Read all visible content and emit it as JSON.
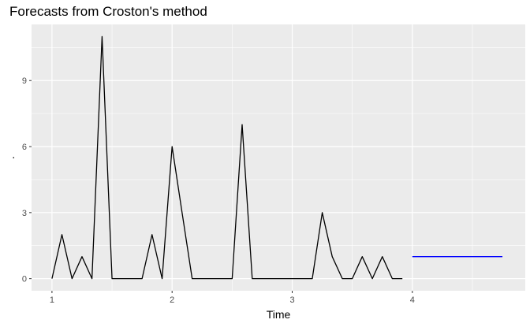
{
  "chart_data": {
    "type": "line",
    "title": "Forecasts from Croston's method",
    "xlabel": "Time",
    "ylabel": ".",
    "xlim": [
      0.83,
      4.94
    ],
    "ylim": [
      -0.55,
      11.55
    ],
    "x_ticks": [
      1,
      2,
      3,
      4
    ],
    "x_tick_labels": [
      "1",
      "2",
      "3",
      "4"
    ],
    "y_ticks": [
      0,
      3,
      6,
      9
    ],
    "y_tick_labels": [
      "0",
      "3",
      "6",
      "9"
    ],
    "grid": true,
    "legend": "none",
    "series": [
      {
        "color": "#000000",
        "x": [
          1.0,
          1.083,
          1.167,
          1.25,
          1.333,
          1.417,
          1.5,
          1.583,
          1.667,
          1.75,
          1.833,
          1.917,
          2.0,
          2.083,
          2.167,
          2.25,
          2.333,
          2.417,
          2.5,
          2.583,
          2.667,
          2.75,
          2.833,
          2.917,
          3.0,
          3.083,
          3.167,
          3.25,
          3.333,
          3.417,
          3.5,
          3.583,
          3.667,
          3.75,
          3.833,
          3.917
        ],
        "values": [
          0,
          2,
          0,
          1,
          0,
          11,
          0,
          0,
          0,
          0,
          2,
          0,
          6,
          3,
          0,
          0,
          0,
          0,
          0,
          7,
          0,
          0,
          0,
          0,
          0,
          0,
          0,
          3,
          1,
          0,
          0,
          1,
          0,
          1,
          0,
          0
        ]
      },
      {
        "color": "#0000ff",
        "x": [
          4.0,
          4.75
        ],
        "values": [
          1.0,
          1.0
        ]
      }
    ]
  }
}
